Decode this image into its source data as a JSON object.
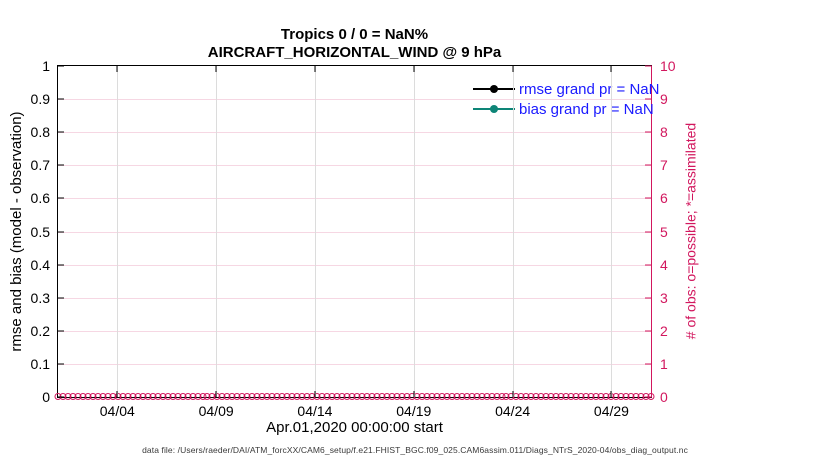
{
  "figure": {
    "title_line1": "Tropics 0 / 0 = NaN%",
    "title_line2": "AIRCRAFT_HORIZONTAL_WIND @ 9 hPa",
    "xlabel": "Apr.01,2020 00:00:00 start",
    "ylabel_left": "rmse and bias (model - observation)",
    "ylabel_right": "# of obs: o=possible; *=assimilated",
    "footer": "data file: /Users/raeder/DAI/ATM_forcXX/CAM6_setup/f.e21.FHIST_BGC.f09_025.CAM6assim.011/Diags_NTrS_2020-04/obs_diag_output.nc"
  },
  "legend": {
    "items": [
      {
        "label": "rmse grand pr = NaN",
        "line_color": "#000000"
      },
      {
        "label": "bias grand pr = NaN",
        "line_color": "#0e8577"
      }
    ],
    "text_color": "#1a1aff"
  },
  "chart_data": {
    "type": "line",
    "title": "Tropics 0 / 0 = NaN%",
    "subtitle": "AIRCRAFT_HORIZONTAL_WIND @ 9 hPa",
    "xlabel": "Apr.01,2020 00:00:00 start",
    "x_axis": {
      "tick_labels": [
        "04/04",
        "04/09",
        "04/14",
        "04/19",
        "04/24",
        "04/29"
      ],
      "tick_days": [
        3,
        8,
        13,
        18,
        23,
        28
      ],
      "range_days": [
        0,
        30
      ],
      "start": "Apr.01,2020 00:00:00"
    },
    "y_axis_left": {
      "label": "rmse and bias (model - observation)",
      "tick_labels": [
        "1",
        "0.9",
        "0.8",
        "0.7",
        "0.6",
        "0.5",
        "0.4",
        "0.3",
        "0.2",
        "0.1",
        "0"
      ],
      "range": [
        0,
        1
      ],
      "color": "#000000"
    },
    "y_axis_right": {
      "label": "# of obs: o=possible; *=assimilated",
      "tick_labels": [
        "10",
        "9",
        "8",
        "7",
        "6",
        "5",
        "4",
        "3",
        "2",
        "1",
        "0"
      ],
      "range": [
        0,
        10
      ],
      "color": "#d2175e"
    },
    "grid": {
      "horizontal_color": "#f6d7e3",
      "vertical_color": "#dcdcdc",
      "on": true
    },
    "legend_position": "upper right inside, transparent",
    "series": [
      {
        "name": "rmse grand pr = NaN",
        "type": "line",
        "color": "#000000",
        "grand_pr": "NaN",
        "values": []
      },
      {
        "name": "bias grand pr = NaN",
        "type": "line",
        "color": "#0e8577",
        "grand_pr": "NaN",
        "values": []
      },
      {
        "name": "# of obs possible (o markers)",
        "type": "marker",
        "color": "#d2175e",
        "y_value": 0
      },
      {
        "name": "# of obs assimilated (* markers)",
        "type": "marker",
        "color": "#d2175e",
        "y_value": 0
      }
    ],
    "obs_markers": {
      "count": 120,
      "y_value": 0,
      "color": "#d2175e"
    }
  },
  "palette": {
    "axis_pink": "#d2175e",
    "pink_grid": "#f6d7e3",
    "gray_grid": "#dcdcdc",
    "teal": "#0e8577",
    "legend_blue": "#1a1aff",
    "ink": "#000000",
    "footer_gray": "#3a3a3a"
  }
}
